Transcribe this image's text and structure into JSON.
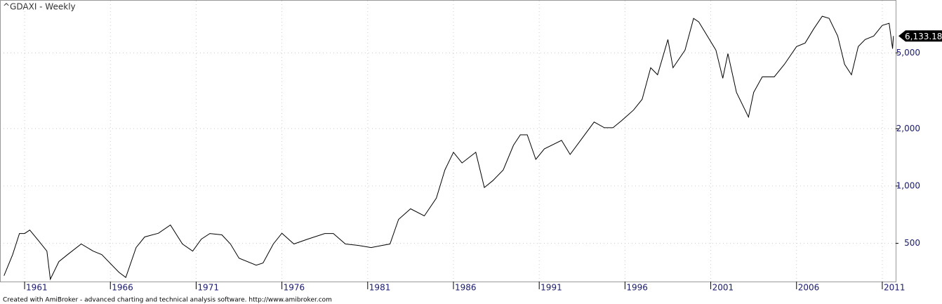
{
  "chart_data": {
    "type": "line",
    "title": "^GDAXI - Weekly",
    "footer": "Created with AmiBroker - advanced charting and technical analysis software. http://www.amibroker.com",
    "log_y": true,
    "grid": true,
    "xlim": [
      1959.77,
      2011.78
    ],
    "xticks": [
      1961,
      1966,
      1971,
      1976,
      1981,
      1986,
      1991,
      1996,
      2001,
      2006,
      2011
    ],
    "ylim": [
      315,
      9400
    ],
    "yticks": [
      500,
      {
        "value": 1000,
        "label": "1,000"
      },
      {
        "value": 2000,
        "label": "2,000"
      },
      {
        "value": 5000,
        "label": "5,000"
      }
    ],
    "last_value_label": "6,133.18",
    "series": [
      {
        "name": "^GDAXI",
        "color": "#000000",
        "x": [
          1959.8,
          1960.3,
          1960.7,
          1961.0,
          1961.3,
          1961.8,
          1962.3,
          1962.5,
          1963.0,
          1963.5,
          1964.3,
          1965.0,
          1965.5,
          1966.5,
          1966.9,
          1967.5,
          1968.0,
          1968.8,
          1969.5,
          1970.2,
          1970.8,
          1971.3,
          1971.8,
          1972.5,
          1973.0,
          1973.5,
          1974.5,
          1974.9,
          1975.5,
          1976.0,
          1976.7,
          1977.5,
          1978.5,
          1979.0,
          1979.7,
          1980.5,
          1981.2,
          1981.8,
          1982.3,
          1982.8,
          1983.5,
          1984.3,
          1985.0,
          1985.5,
          1986.0,
          1986.5,
          1987.3,
          1987.8,
          1988.3,
          1988.9,
          1989.5,
          1989.9,
          1990.3,
          1990.8,
          1991.3,
          1992.3,
          1992.8,
          1993.5,
          1994.2,
          1994.8,
          1995.3,
          1995.8,
          1996.5,
          1997.0,
          1997.5,
          1997.9,
          1998.5,
          1998.8,
          1999.5,
          2000.0,
          2000.3,
          2000.8,
          2001.3,
          2001.7,
          2002.0,
          2002.5,
          2003.2,
          2003.5,
          2004.0,
          2004.7,
          2005.3,
          2006.0,
          2006.5,
          2007.0,
          2007.5,
          2007.9,
          2008.4,
          2008.8,
          2009.2,
          2009.6,
          2010.0,
          2010.5,
          2011.0,
          2011.4,
          2011.6,
          2011.65
        ],
        "values": [
          338,
          436,
          563,
          563,
          587,
          518,
          455,
          324,
          401,
          436,
          496,
          455,
          436,
          352,
          331,
          475,
          540,
          565,
          624,
          496,
          455,
          526,
          563,
          554,
          496,
          418,
          384,
          394,
          496,
          565,
          496,
          526,
          563,
          563,
          496,
          487,
          475,
          487,
          496,
          668,
          759,
          697,
          863,
          1214,
          1503,
          1321,
          1503,
          982,
          1068,
          1214,
          1637,
          1858,
          1858,
          1380,
          1567,
          1737,
          1465,
          1782,
          2168,
          2024,
          2024,
          2203,
          2506,
          2851,
          4180,
          3838,
          5877,
          4180,
          5171,
          7590,
          7275,
          6133,
          5171,
          3678,
          4954,
          3103,
          2302,
          3103,
          3741,
          3741,
          4360,
          5400,
          5634,
          6682,
          7790,
          7590,
          6133,
          4360,
          3838,
          5400,
          5877,
          6133,
          6970,
          7150,
          5260,
          6133.18
        ]
      }
    ]
  }
}
